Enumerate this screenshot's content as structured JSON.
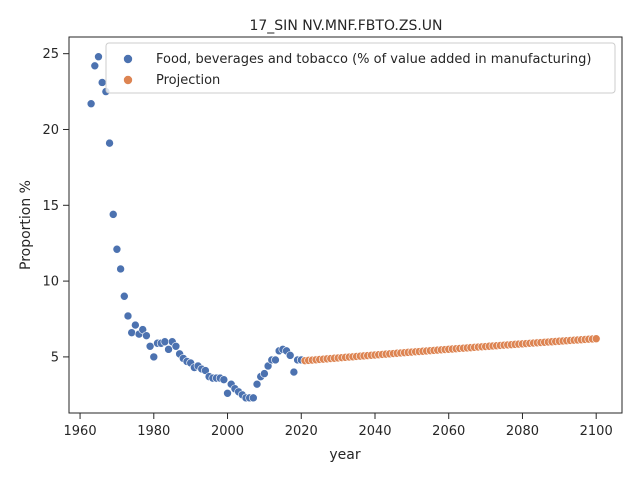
{
  "chart_data": {
    "type": "scatter",
    "title": "17_SIN NV.MNF.FBTO.ZS.UN",
    "xlabel": "year",
    "ylabel": "Proportion %",
    "xlim": [
      1957,
      2107
    ],
    "ylim": [
      1.3,
      26.1
    ],
    "xticks": [
      1960,
      1980,
      2000,
      2020,
      2040,
      2060,
      2080,
      2100
    ],
    "yticks": [
      5,
      10,
      15,
      20,
      25
    ],
    "grid": false,
    "legend_position": "top-right",
    "series": [
      {
        "name": "Food, beverages and tobacco (% of value added in manufacturing)",
        "color": "#4c72b0",
        "points": [
          [
            1963,
            21.7
          ],
          [
            1964,
            24.2
          ],
          [
            1965,
            24.8
          ],
          [
            1966,
            23.1
          ],
          [
            1967,
            22.5
          ],
          [
            1968,
            19.1
          ],
          [
            1969,
            14.4
          ],
          [
            1970,
            12.1
          ],
          [
            1971,
            10.8
          ],
          [
            1972,
            9.0
          ],
          [
            1973,
            7.7
          ],
          [
            1974,
            6.6
          ],
          [
            1975,
            7.1
          ],
          [
            1976,
            6.5
          ],
          [
            1977,
            6.8
          ],
          [
            1978,
            6.4
          ],
          [
            1979,
            5.7
          ],
          [
            1980,
            5.0
          ],
          [
            1981,
            5.9
          ],
          [
            1982,
            5.9
          ],
          [
            1983,
            6.0
          ],
          [
            1984,
            5.5
          ],
          [
            1985,
            6.0
          ],
          [
            1986,
            5.7
          ],
          [
            1987,
            5.2
          ],
          [
            1988,
            4.9
          ],
          [
            1989,
            4.7
          ],
          [
            1990,
            4.6
          ],
          [
            1991,
            4.3
          ],
          [
            1992,
            4.4
          ],
          [
            1993,
            4.2
          ],
          [
            1994,
            4.1
          ],
          [
            1995,
            3.7
          ],
          [
            1996,
            3.6
          ],
          [
            1997,
            3.6
          ],
          [
            1998,
            3.6
          ],
          [
            1999,
            3.5
          ],
          [
            2000,
            2.6
          ],
          [
            2001,
            3.2
          ],
          [
            2002,
            2.9
          ],
          [
            2003,
            2.7
          ],
          [
            2004,
            2.5
          ],
          [
            2005,
            2.3
          ],
          [
            2006,
            2.3
          ],
          [
            2007,
            2.3
          ],
          [
            2008,
            3.2
          ],
          [
            2009,
            3.7
          ],
          [
            2010,
            3.9
          ],
          [
            2011,
            4.4
          ],
          [
            2012,
            4.8
          ],
          [
            2013,
            4.8
          ],
          [
            2014,
            5.4
          ],
          [
            2015,
            5.5
          ],
          [
            2016,
            5.4
          ],
          [
            2017,
            5.1
          ],
          [
            2018,
            4.0
          ],
          [
            2019,
            4.8
          ],
          [
            2020,
            4.8
          ]
        ]
      },
      {
        "name": "Projection",
        "color": "#dd8452",
        "x_start": 2021,
        "x_end": 2100,
        "y_start": 4.75,
        "y_end": 6.2
      }
    ]
  }
}
